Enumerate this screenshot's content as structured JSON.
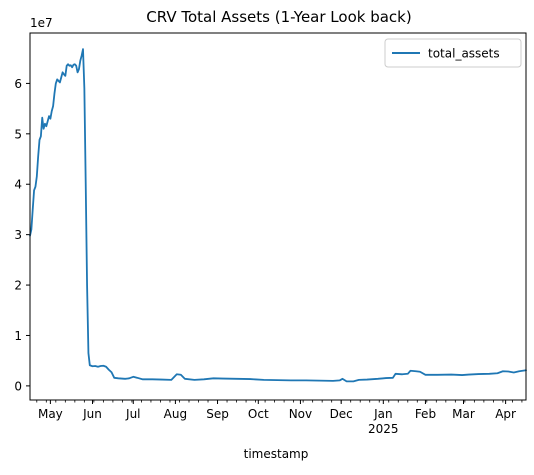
{
  "chart_data": {
    "type": "line",
    "title": "CRV Total Assets (1-Year Look back)",
    "xlabel": "timestamp",
    "ylabel": "",
    "y_offset_label": "1e7",
    "y_multiplier": 10000000,
    "xlim": [
      "2024-04-16",
      "2025-04-16"
    ],
    "ylim": [
      -2800000,
      70000000
    ],
    "grid": false,
    "legend_position": "top-right",
    "y_ticks": [
      0,
      10000000,
      20000000,
      30000000,
      40000000,
      50000000,
      60000000
    ],
    "y_tick_labels": [
      "0",
      "1",
      "2",
      "3",
      "4",
      "5",
      "6"
    ],
    "x_ticks": [
      {
        "date": "2024-05-01",
        "label": "May",
        "sublabel": ""
      },
      {
        "date": "2024-06-01",
        "label": "Jun",
        "sublabel": ""
      },
      {
        "date": "2024-07-01",
        "label": "Jul",
        "sublabel": ""
      },
      {
        "date": "2024-08-01",
        "label": "Aug",
        "sublabel": ""
      },
      {
        "date": "2024-09-01",
        "label": "Sep",
        "sublabel": ""
      },
      {
        "date": "2024-10-01",
        "label": "Oct",
        "sublabel": ""
      },
      {
        "date": "2024-11-01",
        "label": "Nov",
        "sublabel": ""
      },
      {
        "date": "2024-12-01",
        "label": "Dec",
        "sublabel": ""
      },
      {
        "date": "2025-01-01",
        "label": "Jan",
        "sublabel": "2025"
      },
      {
        "date": "2025-02-01",
        "label": "Feb",
        "sublabel": ""
      },
      {
        "date": "2025-03-01",
        "label": "Mar",
        "sublabel": ""
      },
      {
        "date": "2025-04-01",
        "label": "Apr",
        "sublabel": ""
      }
    ],
    "series": [
      {
        "name": "total_assets",
        "color": "#1f77b4",
        "points": [
          [
            "2024-04-16",
            29800000
          ],
          [
            "2024-04-17",
            31000000
          ],
          [
            "2024-04-18",
            35000000
          ],
          [
            "2024-04-19",
            38800000
          ],
          [
            "2024-04-20",
            39500000
          ],
          [
            "2024-04-21",
            41500000
          ],
          [
            "2024-04-22",
            45500000
          ],
          [
            "2024-04-23",
            48800000
          ],
          [
            "2024-04-24",
            49500000
          ],
          [
            "2024-04-25",
            53200000
          ],
          [
            "2024-04-26",
            51000000
          ],
          [
            "2024-04-27",
            52000000
          ],
          [
            "2024-04-28",
            51500000
          ],
          [
            "2024-04-29",
            52500000
          ],
          [
            "2024-04-30",
            53500000
          ],
          [
            "2024-05-01",
            53000000
          ],
          [
            "2024-05-02",
            54500000
          ],
          [
            "2024-05-03",
            55500000
          ],
          [
            "2024-05-04",
            58000000
          ],
          [
            "2024-05-05",
            60000000
          ],
          [
            "2024-05-06",
            60800000
          ],
          [
            "2024-05-07",
            60500000
          ],
          [
            "2024-05-08",
            60200000
          ],
          [
            "2024-05-09",
            61200000
          ],
          [
            "2024-05-10",
            62200000
          ],
          [
            "2024-05-11",
            61800000
          ],
          [
            "2024-05-12",
            61500000
          ],
          [
            "2024-05-13",
            63500000
          ],
          [
            "2024-05-14",
            63800000
          ],
          [
            "2024-05-15",
            63500000
          ],
          [
            "2024-05-16",
            63600000
          ],
          [
            "2024-05-17",
            63200000
          ],
          [
            "2024-05-18",
            63700000
          ],
          [
            "2024-05-19",
            63800000
          ],
          [
            "2024-05-20",
            63500000
          ],
          [
            "2024-05-21",
            62200000
          ],
          [
            "2024-05-22",
            62800000
          ],
          [
            "2024-05-23",
            64500000
          ],
          [
            "2024-05-24",
            65500000
          ],
          [
            "2024-05-25",
            66800000
          ],
          [
            "2024-05-26",
            59000000
          ],
          [
            "2024-05-27",
            40000000
          ],
          [
            "2024-05-28",
            20000000
          ],
          [
            "2024-05-29",
            6500000
          ],
          [
            "2024-05-30",
            4100000
          ],
          [
            "2024-06-01",
            3900000
          ],
          [
            "2024-06-03",
            3950000
          ],
          [
            "2024-06-05",
            3800000
          ],
          [
            "2024-06-07",
            3950000
          ],
          [
            "2024-06-09",
            4000000
          ],
          [
            "2024-06-11",
            3800000
          ],
          [
            "2024-06-13",
            3200000
          ],
          [
            "2024-06-15",
            2700000
          ],
          [
            "2024-06-17",
            1600000
          ],
          [
            "2024-06-20",
            1500000
          ],
          [
            "2024-06-25",
            1400000
          ],
          [
            "2024-06-28",
            1500000
          ],
          [
            "2024-07-01",
            1800000
          ],
          [
            "2024-07-04",
            1600000
          ],
          [
            "2024-07-08",
            1300000
          ],
          [
            "2024-07-15",
            1300000
          ],
          [
            "2024-07-22",
            1250000
          ],
          [
            "2024-07-29",
            1200000
          ],
          [
            "2024-08-02",
            2300000
          ],
          [
            "2024-08-05",
            2200000
          ],
          [
            "2024-08-08",
            1400000
          ],
          [
            "2024-08-15",
            1200000
          ],
          [
            "2024-08-22",
            1300000
          ],
          [
            "2024-08-29",
            1500000
          ],
          [
            "2024-09-05",
            1450000
          ],
          [
            "2024-09-15",
            1400000
          ],
          [
            "2024-09-25",
            1350000
          ],
          [
            "2024-10-05",
            1200000
          ],
          [
            "2024-10-15",
            1150000
          ],
          [
            "2024-10-25",
            1100000
          ],
          [
            "2024-11-05",
            1100000
          ],
          [
            "2024-11-15",
            1050000
          ],
          [
            "2024-11-25",
            1000000
          ],
          [
            "2024-11-30",
            1100000
          ],
          [
            "2024-12-02",
            1400000
          ],
          [
            "2024-12-05",
            900000
          ],
          [
            "2024-12-10",
            900000
          ],
          [
            "2024-12-14",
            1200000
          ],
          [
            "2024-12-20",
            1250000
          ],
          [
            "2024-12-28",
            1400000
          ],
          [
            "2025-01-03",
            1550000
          ],
          [
            "2025-01-08",
            1600000
          ],
          [
            "2025-01-10",
            2400000
          ],
          [
            "2025-01-15",
            2300000
          ],
          [
            "2025-01-19",
            2400000
          ],
          [
            "2025-01-21",
            3000000
          ],
          [
            "2025-01-25",
            2900000
          ],
          [
            "2025-01-28",
            2800000
          ],
          [
            "2025-02-01",
            2200000
          ],
          [
            "2025-02-10",
            2200000
          ],
          [
            "2025-02-20",
            2250000
          ],
          [
            "2025-02-28",
            2150000
          ],
          [
            "2025-03-05",
            2250000
          ],
          [
            "2025-03-12",
            2350000
          ],
          [
            "2025-03-20",
            2400000
          ],
          [
            "2025-03-26",
            2500000
          ],
          [
            "2025-03-30",
            2900000
          ],
          [
            "2025-04-03",
            2850000
          ],
          [
            "2025-04-07",
            2650000
          ],
          [
            "2025-04-11",
            2900000
          ],
          [
            "2025-04-16",
            3100000
          ]
        ]
      }
    ]
  }
}
